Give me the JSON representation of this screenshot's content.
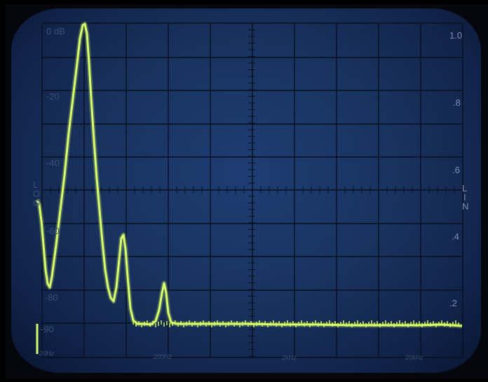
{
  "scale_labels": {
    "log_db": [
      "0 dB",
      "-20",
      "-40",
      "-60",
      "-80",
      "-90"
    ],
    "linear": [
      "1.0",
      ".8",
      ".6",
      ".4",
      ".2"
    ],
    "frequency": [
      "20Hz",
      "200Hz",
      "2kHz",
      "20kHz"
    ],
    "left_axis_text": [
      "L",
      "O",
      "G"
    ],
    "right_axis_text": [
      "L",
      "I",
      "N"
    ]
  },
  "colors": {
    "screen": "#19335f",
    "graticule": "#08101e",
    "trace": "#d8ff6a"
  }
}
